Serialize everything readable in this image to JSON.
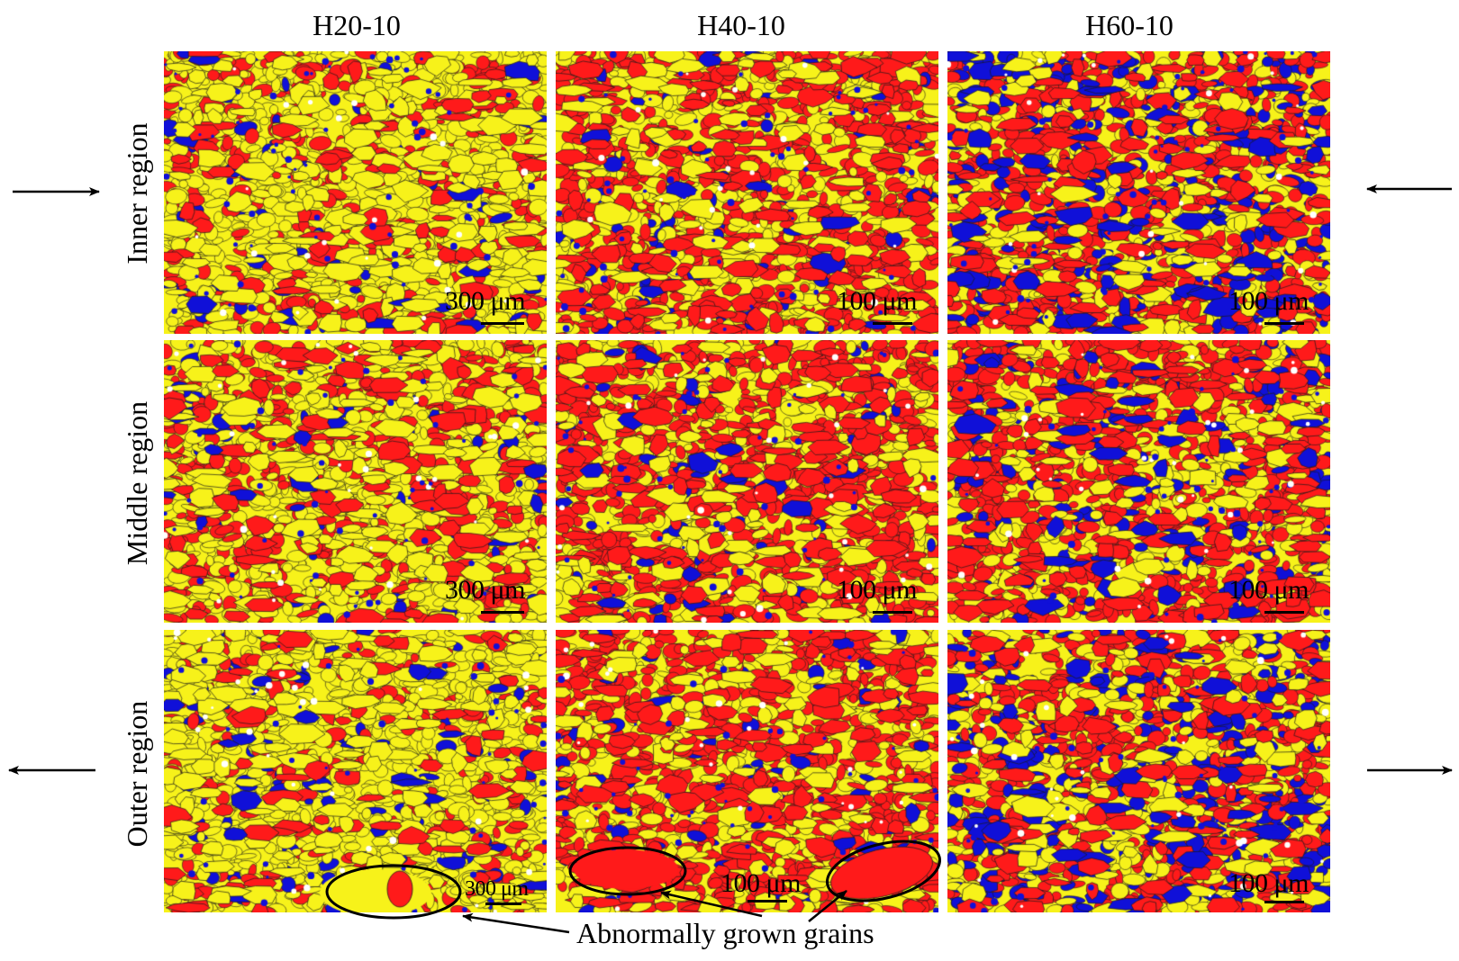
{
  "columns": [
    "H20-10",
    "H40-10",
    "H60-10"
  ],
  "rows": [
    "Inner region",
    "Middle region",
    "Outer region"
  ],
  "scale_bars": [
    [
      "300 μm",
      "100 μm",
      "100 μm"
    ],
    [
      "300 μm",
      "100 μm",
      "100 μm"
    ],
    [
      "300 μm",
      "100 μm",
      "100 μm"
    ]
  ],
  "annotation": "Abnormally grown grains",
  "phase_colors": {
    "red": "#ff1a1a",
    "yellow": "#f7f21a",
    "blue": "#1010d8",
    "grain_boundary": "#1a1a1a"
  }
}
